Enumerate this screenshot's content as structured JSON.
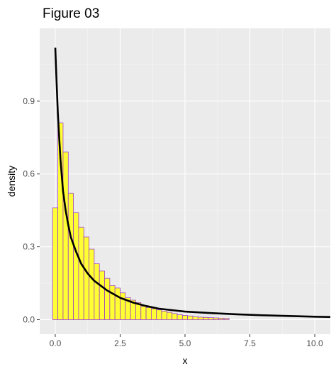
{
  "chart_data": {
    "type": "bar",
    "title": "Figure 03",
    "xlabel": "x",
    "ylabel": "density",
    "xlim": [
      -0.6,
      10.6
    ],
    "ylim": [
      -0.06,
      1.2
    ],
    "xticks": [
      0.0,
      2.5,
      5.0,
      7.5,
      10.0
    ],
    "xtick_labels": [
      "0.0",
      "2.5",
      "5.0",
      "7.5",
      "10.0"
    ],
    "yticks": [
      0.0,
      0.3,
      0.6,
      0.9
    ],
    "ytick_labels": [
      "0.0",
      "0.3",
      "0.6",
      "0.9"
    ],
    "grid": true,
    "histogram": {
      "bin_width": 0.2,
      "bin_start": -0.1,
      "fill": "#ffff33",
      "outline": "#a040c0",
      "values": [
        0.46,
        0.81,
        0.69,
        0.52,
        0.44,
        0.38,
        0.34,
        0.29,
        0.23,
        0.2,
        0.17,
        0.14,
        0.13,
        0.11,
        0.09,
        0.08,
        0.07,
        0.055,
        0.05,
        0.045,
        0.04,
        0.035,
        0.03,
        0.025,
        0.02,
        0.017,
        0.015,
        0.012,
        0.01,
        0.009,
        0.008,
        0.007,
        0.006,
        0.005
      ]
    },
    "density_curve": {
      "color": "#000000",
      "x": [
        0.0,
        0.05,
        0.1,
        0.15,
        0.2,
        0.3,
        0.4,
        0.5,
        0.6,
        0.8,
        1.0,
        1.25,
        1.5,
        2.0,
        2.5,
        3.0,
        3.5,
        4.0,
        5.0,
        6.0,
        7.0,
        8.0,
        9.0,
        10.0,
        10.6
      ],
      "y": [
        1.12,
        0.98,
        0.85,
        0.75,
        0.66,
        0.53,
        0.45,
        0.39,
        0.34,
        0.28,
        0.23,
        0.19,
        0.16,
        0.12,
        0.09,
        0.07,
        0.056,
        0.045,
        0.033,
        0.027,
        0.022,
        0.018,
        0.015,
        0.012,
        0.011
      ]
    }
  }
}
